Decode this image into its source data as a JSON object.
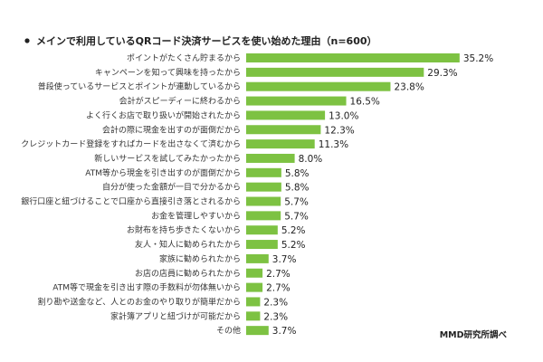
{
  "chart_data": {
    "type": "bar",
    "orientation": "horizontal",
    "title": "メインで利用しているQRコード決済サービスを使い始めた理由（n=600）",
    "unit": "%",
    "categories": [
      "ポイントがたくさん貯まるから",
      "キャンペーンを知って興味を持ったから",
      "普段使っているサービスとポイントが連動しているから",
      "会計がスピーディーに終わるから",
      "よく行くお店で取り扱いが開始されたから",
      "会計の際に現金を出すのが面倒だから",
      "クレジットカード登録をすればカードを出さなくて済むから",
      "新しいサービスを試してみたかったから",
      "ATM等から現金を引き出すのが面倒だから",
      "自分が使った金額が一目で分かるから",
      "銀行口座と紐づけることで口座から直接引き落とされるから",
      "お金を管理しやすいから",
      "お財布を持ち歩きたくないから",
      "友人・知人に勧められたから",
      "家族に勧められたから",
      "お店の店員に勧められたから",
      "ATM等で現金を引き出す際の手数料が勿体無いから",
      "割り勘や送金など、人とのお金のやり取りが簡単だから",
      "家計簿アプリと紐づけが可能だから",
      "その他"
    ],
    "values": [
      35.2,
      29.3,
      23.8,
      16.5,
      13.0,
      12.3,
      11.3,
      8.0,
      5.8,
      5.8,
      5.7,
      5.7,
      5.2,
      5.2,
      3.7,
      2.7,
      2.7,
      2.3,
      2.3,
      3.7
    ],
    "value_labels": [
      "35.2%",
      "29.3%",
      "23.8%",
      "16.5%",
      "13.0%",
      "12.3%",
      "11.3%",
      "8.0%",
      "5.8%",
      "5.8%",
      "5.7%",
      "5.7%",
      "5.2%",
      "5.2%",
      "3.7%",
      "2.7%",
      "2.7%",
      "2.3%",
      "2.3%",
      "3.7%"
    ],
    "bar_color": "#7dc242",
    "grid": false,
    "source": "MMD研究所調べ"
  }
}
